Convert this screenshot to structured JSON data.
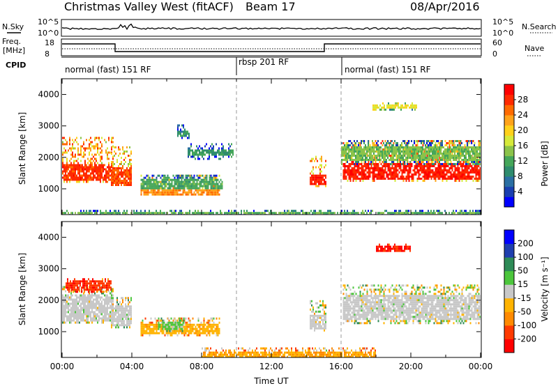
{
  "header": {
    "station": "Christmas Valley West (fitACF)",
    "beam": "Beam 17",
    "date": "08/Apr/2016"
  },
  "top_panel": {
    "nsky_label": "N.Sky",
    "nsky_ticks": [
      "10^5",
      "10^0"
    ],
    "nsearch_label": "N.Search",
    "nsearch_ticks": [
      "10^5",
      "10^0"
    ],
    "freq_label": "Freq.",
    "freq_unit": "[MHz]",
    "freq_ticks": [
      "18",
      "8"
    ],
    "nave_label": "Nave",
    "nave_ticks": [
      "60",
      "0"
    ],
    "cpid_label": "CPID",
    "cpid_segments": [
      {
        "label": "normal (fast) 151 RF",
        "start_h": 0,
        "end_h": 10
      },
      {
        "label": "rbsp 201 RF",
        "start_h": 10,
        "end_h": 16
      },
      {
        "label": "normal (fast) 151 RF",
        "start_h": 16,
        "end_h": 24
      }
    ]
  },
  "power_colorbar": {
    "label": "Power [dB]",
    "ticks": [
      "28",
      "24",
      "20",
      "16",
      "12",
      "8",
      "4"
    ]
  },
  "velocity_colorbar": {
    "label": "Velocity [m s⁻¹]",
    "ticks": [
      "200",
      "100",
      "50",
      "15",
      "-15",
      "-50",
      "-100",
      "-200"
    ]
  },
  "colors": {
    "power_scale": [
      "#0000ff",
      "#1a3fb0",
      "#2b6fa3",
      "#2f8c6e",
      "#45a65a",
      "#8bc34a",
      "#d6e93a",
      "#ffd11a",
      "#ffa31a",
      "#ff6a00",
      "#ff2a00",
      "#ff0000"
    ],
    "velocity_scale": [
      "#ff0000",
      "#ff3a00",
      "#ff8a00",
      "#ffb300",
      "#c8c8c8",
      "#4cc63c",
      "#2e8b57",
      "#1f3fae",
      "#0000ff"
    ]
  },
  "chart_data": [
    {
      "type": "heatmap",
      "title": "Power",
      "xlabel": "",
      "ylabel": "Slant Range [km]",
      "xlim": [
        0,
        24
      ],
      "ylim": [
        180,
        4500
      ],
      "yticks": [
        1000,
        2000,
        3000,
        4000
      ],
      "value_range": [
        0,
        30
      ],
      "regions": [
        {
          "x": [
            0.0,
            2.9
          ],
          "y": [
            1250,
            2650
          ],
          "core_y": [
            1300,
            1850
          ],
          "value": 26
        },
        {
          "x": [
            2.8,
            4.0
          ],
          "y": [
            1100,
            2350
          ],
          "core_y": [
            1100,
            1700
          ],
          "value": 25
        },
        {
          "x": [
            4.5,
            9.0
          ],
          "y": [
            800,
            1450
          ],
          "core_y": [
            800,
            1050
          ],
          "value": 22
        },
        {
          "x": [
            4.5,
            9.2
          ],
          "y": [
            1050,
            1450
          ],
          "core_y": [
            1050,
            1350
          ],
          "value": 11
        },
        {
          "x": [
            7.2,
            9.8
          ],
          "y": [
            1950,
            2450
          ],
          "core_y": [
            2100,
            2300
          ],
          "value": 10
        },
        {
          "x": [
            6.6,
            7.3
          ],
          "y": [
            2600,
            3050
          ],
          "core_y": [
            2700,
            2900
          ],
          "value": 9
        },
        {
          "x": [
            14.2,
            15.1
          ],
          "y": [
            1100,
            2050
          ],
          "core_y": [
            1150,
            1500
          ],
          "value": 27
        },
        {
          "x": [
            16.1,
            24.0
          ],
          "y": [
            1250,
            2550
          ],
          "core_y": [
            1300,
            1850
          ],
          "value": 27
        },
        {
          "x": [
            16.0,
            24.0
          ],
          "y": [
            1800,
            2550
          ],
          "core_y": [
            1950,
            2400
          ],
          "value": 13
        },
        {
          "x": [
            17.8,
            20.3
          ],
          "y": [
            3550,
            3750
          ],
          "core_y": [
            3600,
            3700
          ],
          "value": 17
        },
        {
          "x": [
            0.0,
            24.0
          ],
          "y": [
            180,
            330
          ],
          "core_y": [
            200,
            300
          ],
          "value": 12
        }
      ]
    },
    {
      "type": "heatmap",
      "title": "Velocity",
      "xlabel": "Time UT",
      "ylabel": "Slant Range [km]",
      "xlim": [
        0,
        24
      ],
      "ylim": [
        180,
        4500
      ],
      "xticks": [
        "00:00",
        "04:00",
        "08:00",
        "12:00",
        "16:00",
        "20:00",
        "00:00"
      ],
      "yticks": [
        1000,
        2000,
        3000,
        4000
      ],
      "value_range": [
        -250,
        250
      ],
      "regions": [
        {
          "x": [
            0.0,
            2.9
          ],
          "y": [
            1300,
            2450
          ],
          "core_y": [
            1350,
            2200
          ],
          "value": 0
        },
        {
          "x": [
            0.2,
            2.8
          ],
          "y": [
            2300,
            2700
          ],
          "core_y": [
            2350,
            2650
          ],
          "value": -180
        },
        {
          "x": [
            2.8,
            4.0
          ],
          "y": [
            1150,
            2100
          ],
          "core_y": [
            1200,
            1900
          ],
          "value": 0
        },
        {
          "x": [
            4.5,
            9.0
          ],
          "y": [
            900,
            1450
          ],
          "core_y": [
            950,
            1300
          ],
          "value": -60
        },
        {
          "x": [
            5.5,
            7.0
          ],
          "y": [
            1000,
            1450
          ],
          "core_y": [
            1100,
            1350
          ],
          "value": 40
        },
        {
          "x": [
            16.1,
            24.0
          ],
          "y": [
            1300,
            2500
          ],
          "core_y": [
            1400,
            2200
          ],
          "value": 0
        },
        {
          "x": [
            14.2,
            15.1
          ],
          "y": [
            1050,
            2000
          ],
          "core_y": [
            1100,
            1600
          ],
          "value": 0
        },
        {
          "x": [
            18.0,
            20.0
          ],
          "y": [
            3550,
            3800
          ],
          "core_y": [
            3600,
            3750
          ],
          "value": -200
        },
        {
          "x": [
            8.0,
            18.0
          ],
          "y": [
            180,
            500
          ],
          "core_y": [
            200,
            400
          ],
          "value": -80
        }
      ]
    }
  ]
}
